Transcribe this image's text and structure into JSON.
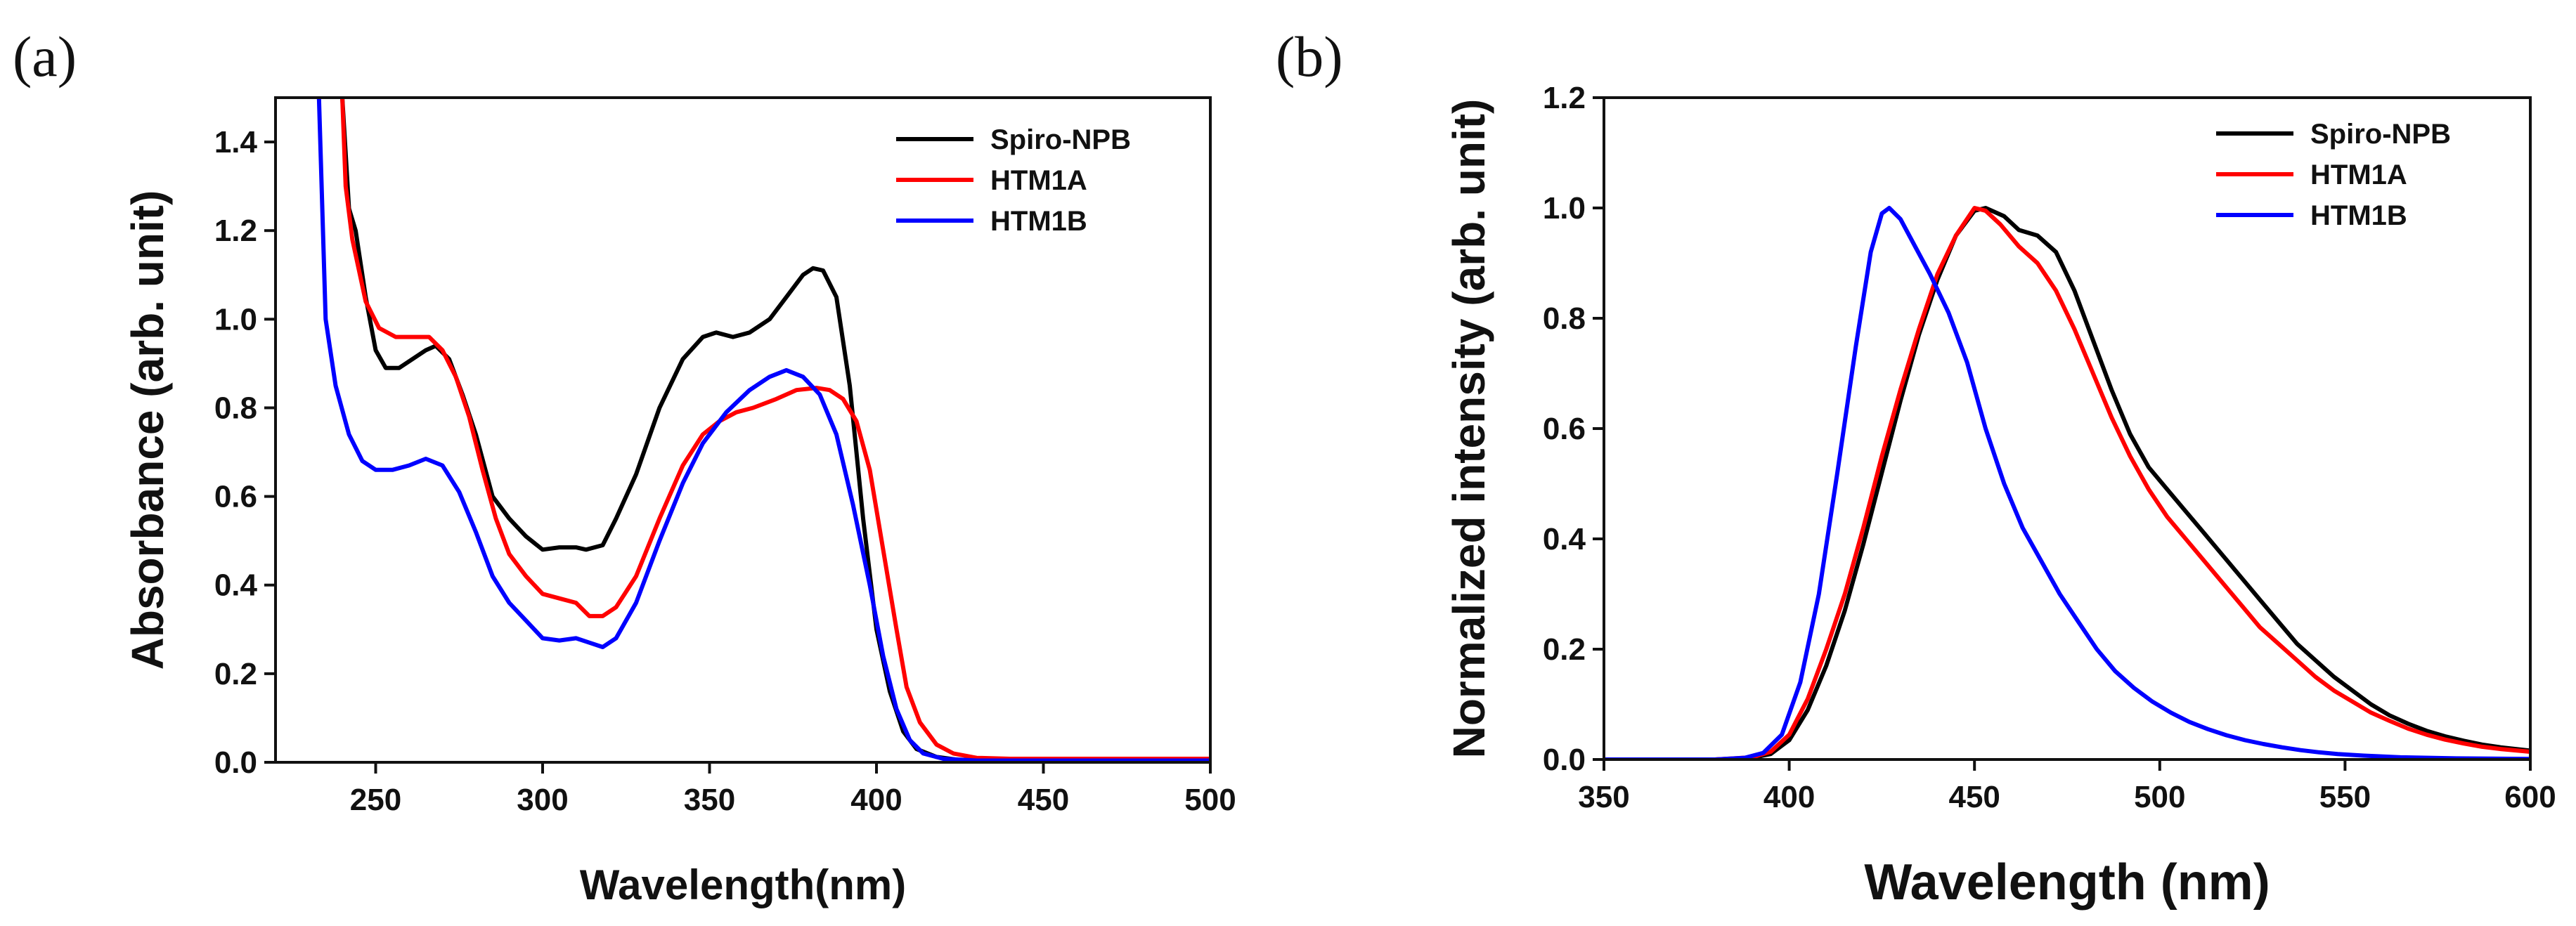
{
  "chart_data": [
    {
      "panel": "(a)",
      "type": "line",
      "xlabel": "Wavelength(nm)",
      "ylabel": "Absorbance (arb. unit)",
      "xlim": [
        220,
        500
      ],
      "ylim": [
        0,
        1.5
      ],
      "xticks": [
        250,
        300,
        350,
        400,
        450,
        500
      ],
      "yticks": [
        "0.0",
        "0.2",
        "0.4",
        "0.6",
        "0.8",
        "1.0",
        "1.2",
        "1.4"
      ],
      "legend_position": "top-right",
      "series": [
        {
          "name": "Spiro-NPB",
          "color": "#000000",
          "points": [
            [
              240,
              1.5
            ],
            [
              242,
              1.25
            ],
            [
              244,
              1.2
            ],
            [
              247,
              1.05
            ],
            [
              250,
              0.93
            ],
            [
              253,
              0.89
            ],
            [
              257,
              0.89
            ],
            [
              261,
              0.91
            ],
            [
              265,
              0.93
            ],
            [
              268,
              0.94
            ],
            [
              272,
              0.91
            ],
            [
              276,
              0.83
            ],
            [
              280,
              0.74
            ],
            [
              285,
              0.6
            ],
            [
              290,
              0.55
            ],
            [
              295,
              0.51
            ],
            [
              300,
              0.48
            ],
            [
              305,
              0.485
            ],
            [
              310,
              0.485
            ],
            [
              313,
              0.48
            ],
            [
              318,
              0.49
            ],
            [
              322,
              0.55
            ],
            [
              328,
              0.65
            ],
            [
              335,
              0.8
            ],
            [
              342,
              0.91
            ],
            [
              348,
              0.96
            ],
            [
              352,
              0.97
            ],
            [
              357,
              0.96
            ],
            [
              362,
              0.97
            ],
            [
              368,
              1.0
            ],
            [
              373,
              1.05
            ],
            [
              378,
              1.1
            ],
            [
              381,
              1.115
            ],
            [
              384,
              1.11
            ],
            [
              388,
              1.05
            ],
            [
              392,
              0.85
            ],
            [
              396,
              0.55
            ],
            [
              400,
              0.3
            ],
            [
              404,
              0.16
            ],
            [
              408,
              0.07
            ],
            [
              412,
              0.03
            ],
            [
              418,
              0.012
            ],
            [
              425,
              0.005
            ],
            [
              440,
              0.005
            ],
            [
              500,
              0.005
            ]
          ]
        },
        {
          "name": "HTM1A",
          "color": "#ff0000",
          "points": [
            [
              240,
              1.5
            ],
            [
              241,
              1.3
            ],
            [
              243,
              1.18
            ],
            [
              247,
              1.04
            ],
            [
              251,
              0.98
            ],
            [
              256,
              0.96
            ],
            [
              261,
              0.96
            ],
            [
              266,
              0.96
            ],
            [
              270,
              0.93
            ],
            [
              274,
              0.87
            ],
            [
              278,
              0.78
            ],
            [
              282,
              0.66
            ],
            [
              286,
              0.55
            ],
            [
              290,
              0.47
            ],
            [
              295,
              0.42
            ],
            [
              300,
              0.38
            ],
            [
              305,
              0.37
            ],
            [
              310,
              0.36
            ],
            [
              314,
              0.33
            ],
            [
              318,
              0.33
            ],
            [
              322,
              0.35
            ],
            [
              328,
              0.42
            ],
            [
              335,
              0.55
            ],
            [
              342,
              0.67
            ],
            [
              348,
              0.74
            ],
            [
              353,
              0.77
            ],
            [
              358,
              0.79
            ],
            [
              363,
              0.8
            ],
            [
              370,
              0.82
            ],
            [
              376,
              0.84
            ],
            [
              382,
              0.845
            ],
            [
              386,
              0.84
            ],
            [
              390,
              0.82
            ],
            [
              394,
              0.77
            ],
            [
              398,
              0.66
            ],
            [
              402,
              0.48
            ],
            [
              406,
              0.3
            ],
            [
              409,
              0.17
            ],
            [
              413,
              0.09
            ],
            [
              418,
              0.04
            ],
            [
              423,
              0.02
            ],
            [
              430,
              0.01
            ],
            [
              440,
              0.008
            ],
            [
              500,
              0.008
            ]
          ]
        },
        {
          "name": "HTM1B",
          "color": "#0000ff",
          "points": [
            [
              233,
              1.5
            ],
            [
              235,
              1.0
            ],
            [
              238,
              0.85
            ],
            [
              242,
              0.74
            ],
            [
              246,
              0.68
            ],
            [
              250,
              0.66
            ],
            [
              255,
              0.66
            ],
            [
              260,
              0.67
            ],
            [
              265,
              0.685
            ],
            [
              270,
              0.67
            ],
            [
              275,
              0.61
            ],
            [
              280,
              0.52
            ],
            [
              285,
              0.42
            ],
            [
              290,
              0.36
            ],
            [
              295,
              0.32
            ],
            [
              300,
              0.28
            ],
            [
              305,
              0.275
            ],
            [
              310,
              0.28
            ],
            [
              314,
              0.27
            ],
            [
              318,
              0.26
            ],
            [
              322,
              0.28
            ],
            [
              328,
              0.36
            ],
            [
              335,
              0.5
            ],
            [
              342,
              0.63
            ],
            [
              348,
              0.72
            ],
            [
              355,
              0.79
            ],
            [
              362,
              0.84
            ],
            [
              368,
              0.87
            ],
            [
              373,
              0.885
            ],
            [
              378,
              0.87
            ],
            [
              383,
              0.83
            ],
            [
              388,
              0.74
            ],
            [
              393,
              0.58
            ],
            [
              398,
              0.4
            ],
            [
              402,
              0.24
            ],
            [
              406,
              0.12
            ],
            [
              410,
              0.05
            ],
            [
              414,
              0.02
            ],
            [
              420,
              0.008
            ],
            [
              430,
              0.004
            ],
            [
              500,
              0.004
            ]
          ]
        }
      ]
    },
    {
      "panel": "(b)",
      "type": "line",
      "xlabel": "Wavelength (nm)",
      "ylabel": "Normalized intensity (arb. unit)",
      "xlim": [
        350,
        600
      ],
      "ylim": [
        0,
        1.2
      ],
      "xticks": [
        350,
        400,
        450,
        500,
        550,
        600
      ],
      "yticks": [
        "0.0",
        "0.2",
        "0.4",
        "0.6",
        "0.8",
        "1.0",
        "1.2"
      ],
      "legend_position": "top-right",
      "series": [
        {
          "name": "Spiro-NPB",
          "color": "#000000",
          "points": [
            [
              350,
              0
            ],
            [
              380,
              0
            ],
            [
              390,
              0.003
            ],
            [
              395,
              0.01
            ],
            [
              400,
              0.035
            ],
            [
              405,
              0.09
            ],
            [
              410,
              0.17
            ],
            [
              415,
              0.27
            ],
            [
              420,
              0.39
            ],
            [
              425,
              0.52
            ],
            [
              430,
              0.65
            ],
            [
              435,
              0.77
            ],
            [
              440,
              0.87
            ],
            [
              445,
              0.95
            ],
            [
              450,
              0.995
            ],
            [
              453,
              1.0
            ],
            [
              458,
              0.985
            ],
            [
              462,
              0.96
            ],
            [
              467,
              0.95
            ],
            [
              472,
              0.92
            ],
            [
              477,
              0.85
            ],
            [
              482,
              0.76
            ],
            [
              487,
              0.67
            ],
            [
              492,
              0.59
            ],
            [
              497,
              0.53
            ],
            [
              502,
              0.49
            ],
            [
              507,
              0.45
            ],
            [
              512,
              0.41
            ],
            [
              517,
              0.37
            ],
            [
              522,
              0.33
            ],
            [
              527,
              0.29
            ],
            [
              532,
              0.25
            ],
            [
              537,
              0.21
            ],
            [
              542,
              0.18
            ],
            [
              547,
              0.15
            ],
            [
              552,
              0.125
            ],
            [
              557,
              0.1
            ],
            [
              562,
              0.08
            ],
            [
              567,
              0.065
            ],
            [
              572,
              0.052
            ],
            [
              577,
              0.042
            ],
            [
              582,
              0.034
            ],
            [
              587,
              0.027
            ],
            [
              592,
              0.022
            ],
            [
              600,
              0.016
            ]
          ]
        },
        {
          "name": "HTM1A",
          "color": "#ff0000",
          "points": [
            [
              350,
              0
            ],
            [
              380,
              0
            ],
            [
              390,
              0.004
            ],
            [
              395,
              0.014
            ],
            [
              400,
              0.045
            ],
            [
              405,
              0.11
            ],
            [
              410,
              0.2
            ],
            [
              415,
              0.3
            ],
            [
              420,
              0.42
            ],
            [
              425,
              0.55
            ],
            [
              430,
              0.67
            ],
            [
              435,
              0.78
            ],
            [
              440,
              0.88
            ],
            [
              445,
              0.95
            ],
            [
              450,
              1.0
            ],
            [
              453,
              0.995
            ],
            [
              457,
              0.97
            ],
            [
              462,
              0.93
            ],
            [
              467,
              0.9
            ],
            [
              472,
              0.85
            ],
            [
              477,
              0.78
            ],
            [
              482,
              0.7
            ],
            [
              487,
              0.62
            ],
            [
              492,
              0.55
            ],
            [
              497,
              0.49
            ],
            [
              502,
              0.44
            ],
            [
              507,
              0.4
            ],
            [
              512,
              0.36
            ],
            [
              517,
              0.32
            ],
            [
              522,
              0.28
            ],
            [
              527,
              0.24
            ],
            [
              532,
              0.21
            ],
            [
              537,
              0.18
            ],
            [
              542,
              0.15
            ],
            [
              547,
              0.125
            ],
            [
              552,
              0.105
            ],
            [
              557,
              0.085
            ],
            [
              562,
              0.07
            ],
            [
              567,
              0.056
            ],
            [
              572,
              0.045
            ],
            [
              577,
              0.036
            ],
            [
              582,
              0.029
            ],
            [
              587,
              0.023
            ],
            [
              592,
              0.019
            ],
            [
              600,
              0.014
            ]
          ]
        },
        {
          "name": "HTM1B",
          "color": "#0000ff",
          "points": [
            [
              350,
              0
            ],
            [
              380,
              0
            ],
            [
              388,
              0.003
            ],
            [
              393,
              0.012
            ],
            [
              398,
              0.045
            ],
            [
              403,
              0.14
            ],
            [
              408,
              0.3
            ],
            [
              413,
              0.52
            ],
            [
              418,
              0.75
            ],
            [
              422,
              0.92
            ],
            [
              425,
              0.99
            ],
            [
              427,
              1.0
            ],
            [
              430,
              0.98
            ],
            [
              434,
              0.93
            ],
            [
              438,
              0.88
            ],
            [
              443,
              0.81
            ],
            [
              448,
              0.72
            ],
            [
              453,
              0.6
            ],
            [
              458,
              0.5
            ],
            [
              463,
              0.42
            ],
            [
              468,
              0.36
            ],
            [
              473,
              0.3
            ],
            [
              478,
              0.25
            ],
            [
              483,
              0.2
            ],
            [
              488,
              0.16
            ],
            [
              493,
              0.13
            ],
            [
              498,
              0.105
            ],
            [
              503,
              0.085
            ],
            [
              508,
              0.068
            ],
            [
              513,
              0.055
            ],
            [
              518,
              0.044
            ],
            [
              523,
              0.035
            ],
            [
              528,
              0.028
            ],
            [
              533,
              0.022
            ],
            [
              538,
              0.017
            ],
            [
              543,
              0.013
            ],
            [
              548,
              0.01
            ],
            [
              555,
              0.007
            ],
            [
              565,
              0.004
            ],
            [
              580,
              0.002
            ],
            [
              600,
              0.001
            ]
          ]
        }
      ]
    }
  ]
}
